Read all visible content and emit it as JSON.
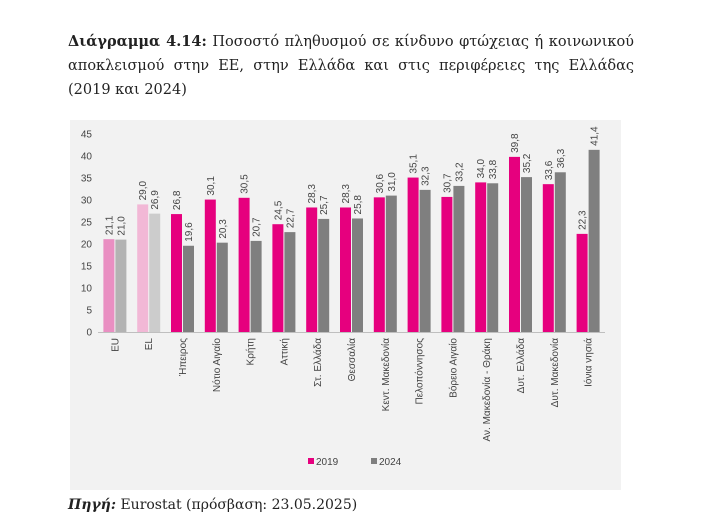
{
  "caption": {
    "label": "Διάγραμμα 4.14:",
    "text": "Ποσοστό πληθυσμού σε κίνδυνο φτώχειας ή κοινωνικού αποκλεισμού στην ΕΕ, στην Ελλάδα και στις περιφέρειες της Ελλάδας (2019 και 2024)"
  },
  "source": {
    "label": "Πηγή:",
    "text": "Eurostat (πρόσβαση: 23.05.2025)"
  },
  "colors": {
    "s2019": "#e6007e",
    "s2024": "#7f7f7f",
    "eu2019": "#e98fc2",
    "eu2024": "#b3b3b3",
    "el2019": "#f2b8d6",
    "el2024": "#cccccc"
  },
  "chart_data": {
    "type": "bar",
    "title": "",
    "xlabel": "",
    "ylabel": "",
    "ylim": [
      0,
      45
    ],
    "yticks": [
      "0",
      "5",
      "10",
      "15",
      "20",
      "25",
      "30",
      "35",
      "40",
      "45"
    ],
    "grid": false,
    "legend": "bottom",
    "categories": [
      "EU",
      "EL",
      "Ήπειρος",
      "Νότιο Αιγαίο",
      "Κρήτη",
      "Αττική",
      "Στ. Ελλάδα",
      "Θεσσαλία",
      "Κεντ. Μακεδονία",
      "Πελοπόννησος",
      "Βόρειο Αιγαίο",
      "Αν. Μακεδονία - Θράκη",
      "Δυτ. Ελλάδα",
      "Δυτ. Μακεδονία",
      "Ιόνια νησιά"
    ],
    "series": [
      {
        "name": "2019",
        "values": [
          21.1,
          29.0,
          26.8,
          30.1,
          30.5,
          24.5,
          28.3,
          28.3,
          30.6,
          35.1,
          30.7,
          34.0,
          39.8,
          33.6,
          22.3
        ],
        "labels": [
          "21,1",
          "29,0",
          "26,8",
          "30,1",
          "30,5",
          "24,5",
          "28,3",
          "28,3",
          "30,6",
          "35,1",
          "30,7",
          "34,0",
          "39,8",
          "33,6",
          "22,3"
        ]
      },
      {
        "name": "2024",
        "values": [
          21.0,
          26.9,
          19.6,
          20.3,
          20.7,
          22.7,
          25.7,
          25.8,
          31.0,
          32.3,
          33.2,
          33.8,
          35.2,
          36.3,
          41.4
        ],
        "labels": [
          "21,0",
          "26,9",
          "19,6",
          "20,3",
          "20,7",
          "22,7",
          "25,7",
          "25,8",
          "31,0",
          "32,3",
          "33,2",
          "33,8",
          "35,2",
          "36,3",
          "41,4"
        ]
      }
    ]
  }
}
